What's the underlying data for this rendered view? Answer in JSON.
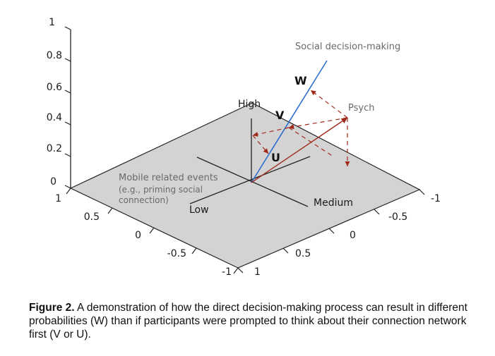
{
  "vertical_axis": {
    "ticks": [
      "1",
      "0.8",
      "0.6",
      "0.4",
      "0.2",
      "0"
    ]
  },
  "left_axis": {
    "ticks": [
      "1",
      "0.5",
      "0",
      "-0.5",
      "-1"
    ]
  },
  "right_axis": {
    "ticks": [
      "-1",
      "-0.5",
      "0",
      "0.5",
      "1"
    ]
  },
  "labels": {
    "high": "High",
    "low": "Low",
    "medium": "Medium",
    "social": "Social decision-making",
    "psych": "Psych",
    "mobile": [
      "Mobile related events",
      "(e.g., priming social",
      "connection)"
    ],
    "w": "W",
    "v": "V",
    "u": "U"
  },
  "colors": {
    "plane": "#d3d3d3",
    "social_line": "#2f6fcf",
    "vectors": "#a02a1a"
  },
  "caption": {
    "bold": "Figure 2.",
    "text": " A demonstration of how the direct decision-making process can result in different probabilities (W) than if participants were prompted to think about their connection network first (V or U)."
  }
}
